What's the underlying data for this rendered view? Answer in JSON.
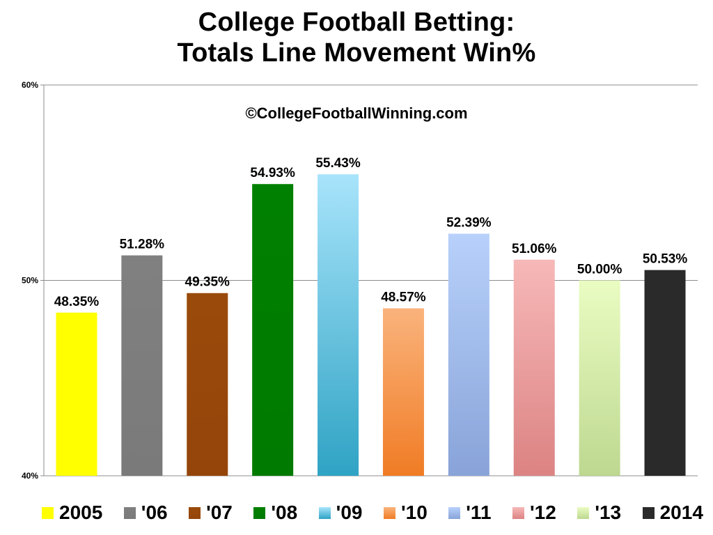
{
  "chart_data": {
    "type": "bar",
    "title": "College Football Betting:",
    "subtitle": "Totals Line Movement Win%",
    "watermark": "©CollegeFootballWinning.com",
    "categories": [
      "2005",
      "'06",
      "'07",
      "'08",
      "'09",
      "'10",
      "'11",
      "'12",
      "'13",
      "2014"
    ],
    "values": [
      48.35,
      51.28,
      49.35,
      54.93,
      55.43,
      48.57,
      52.39,
      51.06,
      50.0,
      50.53
    ],
    "value_labels": [
      "48.35%",
      "51.28%",
      "49.35%",
      "54.93%",
      "55.43%",
      "48.57%",
      "52.39%",
      "51.06%",
      "50.00%",
      "50.53%"
    ],
    "colors": [
      [
        "#ffff00",
        "#ffff00"
      ],
      [
        "#808080",
        "#7a7a7a"
      ],
      [
        "#9a4a0a",
        "#95450a"
      ],
      [
        "#008000",
        "#007a00"
      ],
      [
        "#a8e4fb",
        "#2fa3c4"
      ],
      [
        "#fab37c",
        "#f07c25"
      ],
      [
        "#b8d1fb",
        "#88a3d8"
      ],
      [
        "#f7b8b8",
        "#dc8383"
      ],
      [
        "#eafcc2",
        "#bdd890"
      ],
      [
        "#2a2a2a",
        "#2a2a2a"
      ]
    ],
    "ylim": [
      40,
      60
    ],
    "yticks": [
      40,
      50,
      60
    ],
    "ytick_labels": [
      "40%",
      "50%",
      "60%"
    ],
    "xlabel": "",
    "ylabel": "",
    "grid": true,
    "legend_position": "bottom"
  }
}
